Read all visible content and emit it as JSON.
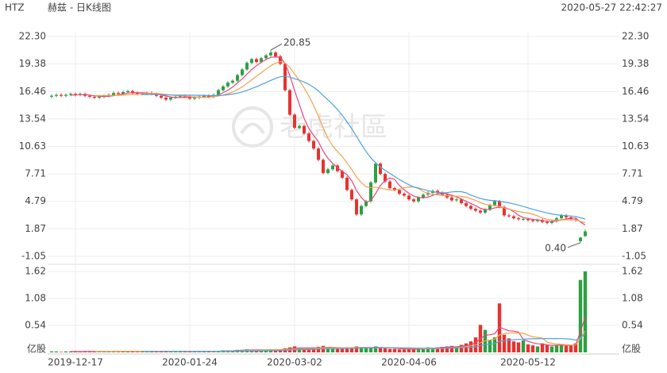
{
  "chart_data": {
    "type": "candlestick",
    "symbol": "HTZ",
    "title": "赫兹 - 日K线图",
    "timestamp": "2020-05-27 22:42:27",
    "watermark": "老虎社區",
    "categories": [
      null,
      null,
      null,
      null,
      null,
      "2019-12-17",
      null,
      null,
      null,
      null,
      null,
      null,
      null,
      null,
      null,
      null,
      null,
      null,
      null,
      null,
      null,
      null,
      null,
      null,
      null,
      null,
      null,
      null,
      null,
      "2020-01-24",
      null,
      null,
      null,
      null,
      null,
      null,
      null,
      null,
      null,
      null,
      null,
      null,
      null,
      null,
      null,
      null,
      null,
      null,
      null,
      null,
      null,
      "2020-03-02",
      null,
      null,
      null,
      null,
      null,
      null,
      null,
      null,
      null,
      null,
      null,
      null,
      null,
      null,
      null,
      null,
      null,
      null,
      null,
      null,
      null,
      null,
      null,
      "2020-04-06",
      null,
      null,
      null,
      null,
      null,
      null,
      null,
      null,
      null,
      null,
      null,
      null,
      null,
      null,
      null,
      null,
      null,
      null,
      null,
      null,
      null,
      null,
      null,
      null,
      "2020-05-12",
      null,
      null,
      null,
      null,
      null,
      null,
      null,
      null,
      null,
      null,
      null,
      null
    ],
    "open": [
      15.9,
      16.0,
      16.1,
      16.0,
      16.1,
      16.2,
      16.1,
      16.2,
      16.0,
      15.9,
      15.8,
      15.9,
      16.0,
      16.1,
      16.3,
      16.2,
      16.4,
      16.5,
      16.3,
      16.2,
      16.2,
      16.3,
      16.2,
      16.0,
      15.8,
      15.6,
      15.8,
      15.9,
      16.0,
      15.9,
      15.7,
      15.8,
      15.9,
      16.0,
      15.9,
      16.1,
      16.6,
      17.0,
      17.4,
      17.6,
      18.2,
      18.8,
      19.5,
      19.9,
      19.6,
      20.0,
      20.3,
      20.6,
      20.2,
      19.4,
      16.6,
      14.0,
      12.6,
      12.8,
      12.0,
      11.2,
      10.4,
      9.2,
      7.8,
      8.2,
      8.6,
      8.0,
      7.3,
      6.0,
      5.0,
      3.4,
      4.3,
      4.8,
      6.8,
      8.8,
      7.7,
      6.9,
      6.2,
      6.0,
      5.6,
      5.4,
      5.0,
      4.8,
      5.2,
      5.5,
      5.7,
      5.9,
      5.7,
      5.5,
      5.2,
      4.9,
      5.0,
      4.6,
      4.3,
      4.0,
      3.8,
      3.6,
      3.9,
      4.4,
      4.8,
      4.2,
      3.3,
      3.2,
      3.0,
      2.9,
      2.9,
      2.8,
      2.7,
      2.8,
      2.6,
      2.5,
      2.7,
      3.0,
      3.3,
      3.1,
      2.9,
      0.56,
      1.1
    ],
    "high": [
      16.15,
      16.25,
      16.25,
      16.25,
      16.35,
      16.35,
      16.35,
      16.35,
      16.15,
      16.05,
      16.05,
      16.15,
      16.25,
      16.45,
      16.45,
      16.55,
      16.65,
      16.65,
      16.45,
      16.35,
      16.45,
      16.45,
      16.35,
      16.15,
      15.95,
      15.95,
      16.05,
      16.15,
      16.15,
      16.05,
      15.95,
      16.05,
      16.15,
      16.15,
      16.25,
      16.75,
      17.15,
      17.55,
      17.75,
      18.35,
      18.95,
      19.65,
      20.05,
      20.05,
      20.15,
      20.45,
      20.85,
      20.75,
      20.35,
      19.55,
      16.75,
      14.15,
      12.95,
      12.95,
      12.15,
      11.35,
      10.55,
      9.35,
      8.35,
      8.75,
      8.75,
      8.15,
      7.45,
      6.15,
      5.15,
      4.45,
      4.95,
      6.95,
      8.95,
      8.95,
      7.85,
      7.05,
      6.35,
      6.15,
      5.75,
      5.55,
      5.15,
      5.35,
      5.65,
      5.85,
      6.05,
      6.05,
      5.85,
      5.65,
      5.35,
      5.15,
      5.15,
      4.75,
      4.45,
      4.15,
      3.95,
      4.05,
      4.55,
      4.95,
      4.95,
      4.35,
      3.45,
      3.35,
      3.15,
      3.05,
      3.05,
      2.95,
      2.95,
      2.95,
      2.75,
      2.85,
      3.15,
      3.45,
      3.45,
      3.25,
      3.05,
      1.0,
      1.8
    ],
    "low": [
      15.75,
      15.85,
      15.85,
      15.85,
      15.95,
      15.95,
      15.95,
      15.85,
      15.75,
      15.65,
      15.65,
      15.75,
      15.85,
      15.95,
      16.05,
      16.05,
      16.25,
      16.15,
      16.05,
      16.05,
      16.05,
      16.05,
      15.85,
      15.65,
      15.45,
      15.45,
      15.65,
      15.75,
      15.75,
      15.55,
      15.55,
      15.65,
      15.75,
      15.75,
      15.75,
      15.95,
      16.45,
      16.85,
      17.25,
      17.45,
      18.05,
      18.65,
      19.35,
      19.45,
      19.45,
      19.85,
      20.15,
      20.05,
      19.25,
      16.45,
      13.85,
      12.45,
      12.45,
      11.85,
      11.05,
      10.25,
      9.05,
      7.65,
      7.65,
      8.05,
      7.85,
      7.15,
      5.85,
      4.85,
      3.25,
      3.25,
      4.15,
      4.65,
      6.65,
      7.55,
      6.75,
      6.05,
      5.85,
      5.45,
      5.25,
      4.85,
      4.65,
      4.65,
      5.05,
      5.35,
      5.55,
      5.55,
      5.35,
      5.05,
      4.75,
      4.75,
      4.45,
      4.15,
      3.85,
      3.65,
      3.45,
      3.45,
      3.75,
      4.25,
      4.05,
      3.15,
      3.05,
      2.85,
      2.75,
      2.75,
      2.65,
      2.55,
      2.55,
      2.45,
      2.35,
      2.35,
      2.55,
      2.85,
      2.95,
      2.75,
      2.65,
      0.4,
      1.0
    ],
    "close": [
      16.0,
      16.1,
      16.0,
      16.1,
      16.2,
      16.1,
      16.2,
      16.0,
      15.9,
      15.8,
      15.9,
      16.0,
      16.1,
      16.3,
      16.2,
      16.4,
      16.5,
      16.3,
      16.2,
      16.2,
      16.3,
      16.2,
      16.0,
      15.8,
      15.6,
      15.8,
      15.9,
      16.0,
      15.9,
      15.7,
      15.8,
      15.9,
      16.0,
      15.9,
      16.1,
      16.6,
      17.0,
      17.4,
      17.6,
      18.2,
      18.8,
      19.5,
      19.9,
      19.6,
      20.0,
      20.3,
      20.6,
      20.2,
      19.4,
      16.6,
      14.0,
      12.6,
      12.8,
      12.0,
      11.2,
      10.4,
      9.2,
      7.8,
      8.2,
      8.6,
      8.0,
      7.3,
      6.0,
      5.0,
      3.4,
      4.3,
      4.8,
      6.8,
      8.8,
      7.7,
      6.9,
      6.2,
      6.0,
      5.6,
      5.4,
      5.0,
      4.8,
      5.2,
      5.5,
      5.7,
      5.9,
      5.7,
      5.5,
      5.2,
      4.9,
      5.0,
      4.6,
      4.3,
      4.0,
      3.8,
      3.6,
      3.9,
      4.4,
      4.8,
      4.2,
      3.3,
      3.2,
      3.0,
      2.9,
      2.9,
      2.8,
      2.7,
      2.8,
      2.6,
      2.5,
      2.7,
      3.0,
      3.3,
      3.1,
      2.9,
      2.8,
      0.94,
      1.6
    ],
    "volume": [
      0.02,
      0.02,
      0.01,
      0.02,
      0.02,
      0.02,
      0.01,
      0.02,
      0.02,
      0.02,
      0.02,
      0.01,
      0.02,
      0.02,
      0.02,
      0.03,
      0.02,
      0.02,
      0.01,
      0.02,
      0.02,
      0.02,
      0.02,
      0.02,
      0.03,
      0.02,
      0.02,
      0.02,
      0.01,
      0.02,
      0.02,
      0.02,
      0.02,
      0.02,
      0.02,
      0.03,
      0.04,
      0.04,
      0.03,
      0.05,
      0.05,
      0.06,
      0.05,
      0.04,
      0.05,
      0.05,
      0.06,
      0.05,
      0.06,
      0.08,
      0.1,
      0.12,
      0.08,
      0.07,
      0.08,
      0.1,
      0.11,
      0.13,
      0.09,
      0.08,
      0.07,
      0.08,
      0.1,
      0.09,
      0.12,
      0.1,
      0.08,
      0.09,
      0.12,
      0.1,
      0.08,
      0.07,
      0.07,
      0.06,
      0.06,
      0.07,
      0.06,
      0.08,
      0.08,
      0.1,
      0.09,
      0.1,
      0.11,
      0.12,
      0.13,
      0.1,
      0.15,
      0.18,
      0.22,
      0.3,
      0.55,
      0.45,
      0.25,
      0.3,
      0.98,
      0.35,
      0.28,
      0.22,
      0.2,
      0.24,
      0.16,
      0.14,
      0.12,
      0.18,
      0.15,
      0.12,
      0.14,
      0.16,
      0.13,
      0.15,
      0.18,
      1.45,
      1.62
    ],
    "max_label": "20.85",
    "min_label": "0.40",
    "up_color": "#2ea043",
    "down_color": "#e8322f",
    "moving_averages": [
      {
        "period": 5,
        "color": "#e8457c"
      },
      {
        "period": 10,
        "color": "#f4a04a"
      },
      {
        "period": 20,
        "color": "#4fa3e0"
      }
    ],
    "ylim": [
      -1.05,
      22.3
    ],
    "yticks": [
      {
        "value": 22.3,
        "label": "22.30"
      },
      19.38,
      16.46,
      13.54,
      10.63,
      7.71,
      4.79,
      1.87,
      -1.05
    ],
    "y2lim": [
      0,
      1.62
    ],
    "y2ticks": [
      {
        "value": 0,
        "label": "亿股"
      },
      0.54,
      1.08,
      1.62
    ],
    "grid": true
  }
}
